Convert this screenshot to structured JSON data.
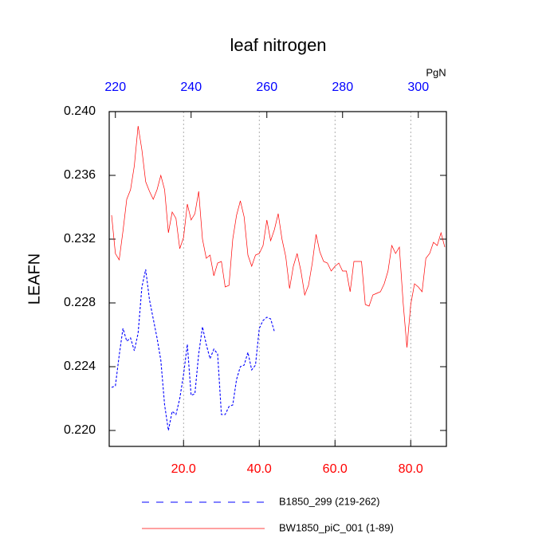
{
  "chart_data": {
    "type": "line",
    "title": "leaf nitrogen",
    "ylabel": "LEAFN",
    "x2label": "PgN",
    "x": [
      1,
      2,
      3,
      4,
      5,
      6,
      7,
      8,
      9,
      10,
      11,
      12,
      13,
      14,
      15,
      16,
      17,
      18,
      19,
      20,
      21,
      22,
      23,
      24,
      25,
      26,
      27,
      28,
      29,
      30,
      31,
      32,
      33,
      34,
      35,
      36,
      37,
      38,
      39,
      40,
      41,
      42,
      43,
      44,
      45,
      46,
      47,
      48,
      49,
      50,
      51,
      52,
      53,
      54,
      55,
      56,
      57,
      58,
      59,
      60,
      61,
      62,
      63,
      64,
      65,
      66,
      67,
      68,
      69,
      70,
      71,
      72,
      73,
      74,
      75,
      76,
      77,
      78,
      79,
      80,
      81,
      82,
      83,
      84,
      85,
      86,
      87,
      88,
      89
    ],
    "series": [
      {
        "name": "B1850_299 (219-262)",
        "color": "#0000ff",
        "dashed": true,
        "values": [
          0.2227,
          0.2228,
          0.2247,
          0.2264,
          0.2256,
          0.2258,
          0.225,
          0.2261,
          0.229,
          0.2301,
          0.2282,
          0.227,
          0.2258,
          0.2244,
          0.2216,
          0.22,
          0.2212,
          0.221,
          0.222,
          0.2235,
          0.2254,
          0.2222,
          0.2223,
          0.2248,
          0.2265,
          0.2254,
          0.2245,
          0.2251,
          0.2248,
          0.221,
          0.221,
          0.2215,
          0.2216,
          0.2232,
          0.224,
          0.2241,
          0.2249,
          0.2238,
          0.2241,
          0.2264,
          0.2269,
          0.2271,
          0.227,
          0.2262,
          null,
          null,
          null,
          null,
          null,
          null,
          null,
          null,
          null,
          null,
          null,
          null,
          null,
          null,
          null,
          null,
          null,
          null,
          null,
          null,
          null,
          null,
          null,
          null,
          null,
          null,
          null,
          null,
          null,
          null,
          null,
          null,
          null,
          null,
          null,
          null,
          null,
          null,
          null,
          null,
          null,
          null,
          null,
          null,
          null
        ]
      },
      {
        "name": "BW1850_piC_001 (1-89)",
        "color": "#ff0000",
        "dashed": false,
        "values": [
          0.2335,
          0.2311,
          0.2307,
          0.2325,
          0.2345,
          0.2351,
          0.2366,
          0.2391,
          0.2376,
          0.2356,
          0.235,
          0.2345,
          0.2351,
          0.236,
          0.2351,
          0.2324,
          0.2337,
          0.2333,
          0.2314,
          0.2321,
          0.2342,
          0.2332,
          0.2336,
          0.235,
          0.232,
          0.2308,
          0.231,
          0.2297,
          0.2305,
          0.2306,
          0.229,
          0.2291,
          0.232,
          0.2335,
          0.2344,
          0.2334,
          0.231,
          0.2303,
          0.231,
          0.2311,
          0.2316,
          0.2332,
          0.2319,
          0.2326,
          0.2336,
          0.232,
          0.2309,
          0.2289,
          0.2303,
          0.2311,
          0.23,
          0.2285,
          0.2291,
          0.2305,
          0.2323,
          0.2312,
          0.2306,
          0.2305,
          0.23,
          0.2303,
          0.2305,
          0.23,
          0.23,
          0.2287,
          0.2306,
          0.2306,
          0.2306,
          0.2279,
          0.2278,
          0.2285,
          0.2286,
          0.2287,
          0.2292,
          0.23,
          0.2316,
          0.2311,
          0.2315,
          0.228,
          0.2252,
          0.2279,
          0.2292,
          0.229,
          0.2287,
          0.2308,
          0.2311,
          0.2318,
          0.2316,
          0.2324,
          0.2315
        ]
      }
    ],
    "xlim": [
      1,
      89
    ],
    "xticks": [
      {
        "value": 20,
        "label": "20.0"
      },
      {
        "value": 40,
        "label": "40.0"
      },
      {
        "value": 60,
        "label": "60.0"
      },
      {
        "value": 80,
        "label": "80.0"
      }
    ],
    "x2lim": [
      219,
      307
    ],
    "x2ticks": [
      220,
      240,
      260,
      280,
      300
    ],
    "ylim": [
      0.219,
      0.24
    ],
    "yticks": [
      {
        "value": 0.22,
        "label": "0.220"
      },
      {
        "value": 0.224,
        "label": "0.224"
      },
      {
        "value": 0.228,
        "label": "0.228"
      },
      {
        "value": 0.232,
        "label": "0.232"
      },
      {
        "value": 0.236,
        "label": "0.236"
      },
      {
        "value": 0.24,
        "label": "0.240"
      }
    ],
    "grid": true,
    "xtick_color": "#ff0000",
    "x2tick_color": "#0000ff"
  }
}
